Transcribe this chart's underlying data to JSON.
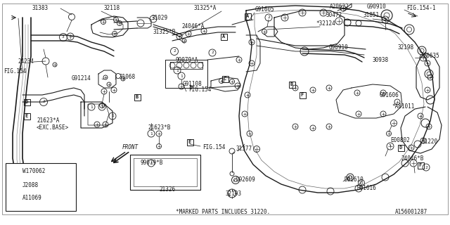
{
  "bg_color": "#ffffff",
  "line_color": "#1a1a1a",
  "text_color": "#1a1a1a",
  "diagram_id": "A156001287",
  "footer_note": "*MARKED PARTS INCLUDES 31220.",
  "legend": [
    {
      "num": "1",
      "code": "W170062"
    },
    {
      "num": "2",
      "code": "J2088"
    },
    {
      "num": "3",
      "code": "A11069"
    }
  ],
  "fig_w": 640,
  "fig_h": 320
}
